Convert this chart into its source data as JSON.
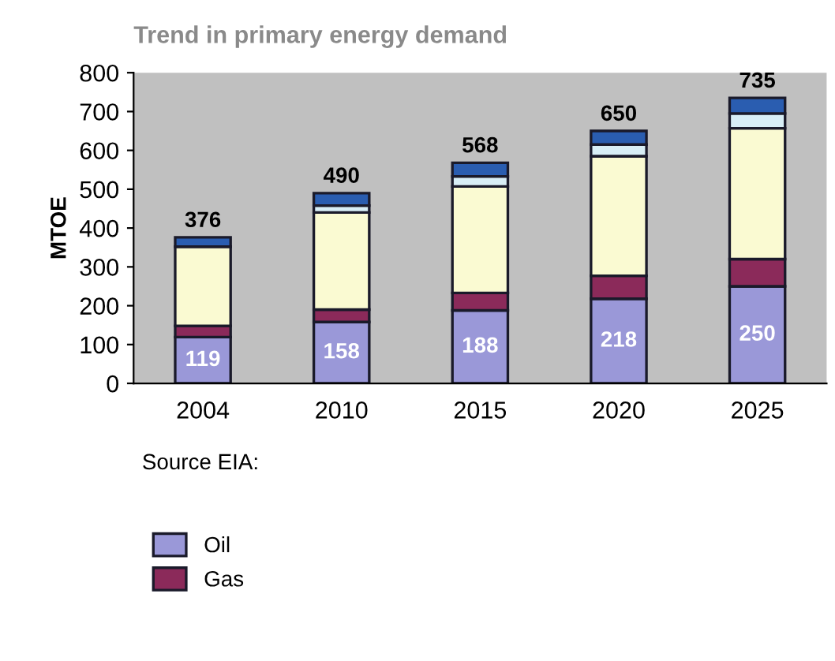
{
  "chart_data": {
    "type": "bar",
    "stacked": true,
    "title": "Trend in primary energy demand",
    "ylabel": "MTOE",
    "categories": [
      "2004",
      "2010",
      "2015",
      "2020",
      "2025"
    ],
    "series": [
      {
        "name": "Oil",
        "color": "#9a98d8",
        "values": [
          119,
          158,
          188,
          218,
          250
        ],
        "value_labels": [
          "119",
          "158",
          "188",
          "218",
          "250"
        ]
      },
      {
        "name": "Gas",
        "color": "#8b2a5a",
        "values": [
          29,
          32,
          45,
          59,
          70
        ]
      },
      {
        "color": "#fafad2",
        "values": [
          204,
          250,
          274,
          308,
          337
        ]
      },
      {
        "color": "#d8eef6",
        "values": [
          null,
          18,
          26,
          30,
          38
        ]
      },
      {
        "color": "#2a5db0",
        "values": [
          24,
          32,
          35,
          35,
          40
        ]
      }
    ],
    "totals": [
      "376",
      "490",
      "568",
      "650",
      "735"
    ],
    "ylim": [
      0,
      800
    ],
    "yticks": [
      0,
      100,
      200,
      300,
      400,
      500,
      600,
      700,
      800
    ],
    "grid": false,
    "legend": "bottom left",
    "annotations": [
      "Source EIA:"
    ]
  }
}
